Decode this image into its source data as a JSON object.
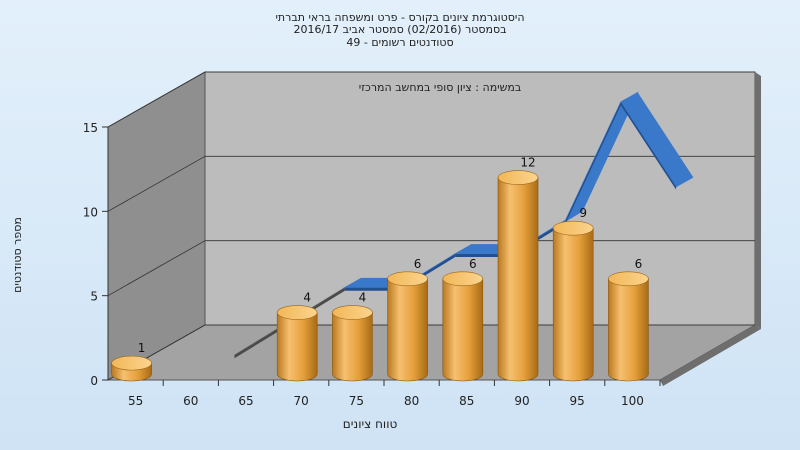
{
  "title_lines": [
    "היסטוגרמת ציונים בקורס - פרט ומשפחה בראי תברתי",
    "בסמסטר  (02/2016)  סמסטר אביב 2016/17",
    "סטודנטים רשומים - 49"
  ],
  "colors": {
    "bar": "#e8a53c",
    "line_ribbon": "#3a78c9",
    "back_wall": "#bcbcbc",
    "side_wall": "#8f8f8f",
    "floor": "#a3a3a3"
  },
  "chart_data": {
    "type": "bar",
    "title": "היסטוגרמת ציונים בקורס - פרט ומשפחה בראי תברתי",
    "subtitle": "במשימה : ציון סופי במחשב המרכזי",
    "xlabel": "טווח ציונים",
    "ylabel": "מספר סטודנטים",
    "categories": [
      "55",
      "60",
      "65",
      "70",
      "75",
      "80",
      "85",
      "90",
      "95",
      "100"
    ],
    "values": [
      1,
      0,
      0,
      4,
      4,
      6,
      6,
      12,
      9,
      6
    ],
    "line_values": [
      0,
      0,
      2,
      4,
      4,
      6,
      6,
      8,
      15,
      10
    ],
    "y_ticks": [
      "0",
      "5",
      "10",
      "15"
    ],
    "ylim": [
      0,
      15
    ],
    "grid": true
  }
}
